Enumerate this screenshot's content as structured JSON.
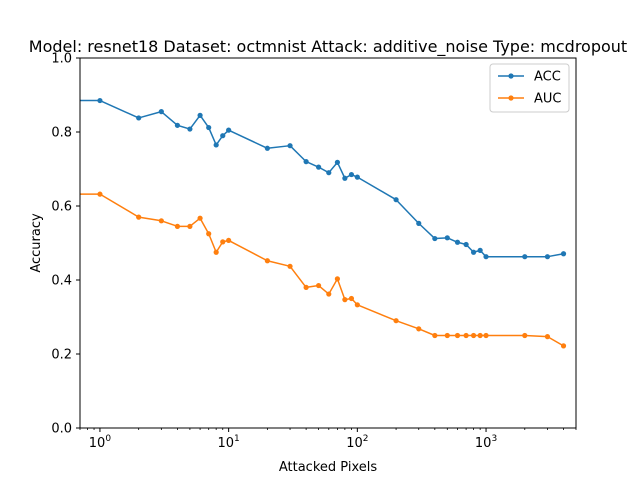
{
  "chart_data": {
    "type": "line",
    "title": "Model: resnet18 Dataset: octmnist Attack: additive_noise Type: mcdropout",
    "xlabel": "Attacked Pixels",
    "ylabel": "Accuracy",
    "xscale": "log",
    "xlim": [
      0.7,
      5000
    ],
    "ylim": [
      0.0,
      1.0
    ],
    "x_ticks": [
      {
        "value": 1,
        "base": "10",
        "exp": "0"
      },
      {
        "value": 10,
        "base": "10",
        "exp": "1"
      },
      {
        "value": 100,
        "base": "10",
        "exp": "2"
      },
      {
        "value": 1000,
        "base": "10",
        "exp": "3"
      }
    ],
    "y_ticks": [
      "0.0",
      "0.2",
      "0.4",
      "0.6",
      "0.8",
      "1.0"
    ],
    "y_tick_values": [
      0.0,
      0.2,
      0.4,
      0.6,
      0.8,
      1.0
    ],
    "grid": false,
    "legend_position": "top-right",
    "series": [
      {
        "name": "ACC",
        "color": "#1f77b4",
        "points": [
          [
            0.1,
            0.885
          ],
          [
            1,
            0.885
          ],
          [
            2,
            0.838
          ],
          [
            3,
            0.855
          ],
          [
            4,
            0.818
          ],
          [
            5,
            0.808
          ],
          [
            6,
            0.845
          ],
          [
            7,
            0.812
          ],
          [
            8,
            0.765
          ],
          [
            9,
            0.79
          ],
          [
            10,
            0.805
          ],
          [
            20,
            0.756
          ],
          [
            30,
            0.763
          ],
          [
            40,
            0.72
          ],
          [
            50,
            0.705
          ],
          [
            60,
            0.69
          ],
          [
            70,
            0.718
          ],
          [
            80,
            0.675
          ],
          [
            90,
            0.685
          ],
          [
            100,
            0.678
          ],
          [
            200,
            0.617
          ],
          [
            300,
            0.553
          ],
          [
            400,
            0.512
          ],
          [
            500,
            0.514
          ],
          [
            600,
            0.502
          ],
          [
            700,
            0.496
          ],
          [
            800,
            0.475
          ],
          [
            900,
            0.48
          ],
          [
            1000,
            0.463
          ],
          [
            2000,
            0.463
          ],
          [
            3000,
            0.463
          ],
          [
            4000,
            0.471
          ]
        ]
      },
      {
        "name": "AUC",
        "color": "#ff7f0e",
        "points": [
          [
            0.1,
            0.632
          ],
          [
            1,
            0.632
          ],
          [
            2,
            0.57
          ],
          [
            3,
            0.56
          ],
          [
            4,
            0.545
          ],
          [
            5,
            0.545
          ],
          [
            6,
            0.567
          ],
          [
            7,
            0.525
          ],
          [
            8,
            0.475
          ],
          [
            9,
            0.503
          ],
          [
            10,
            0.507
          ],
          [
            20,
            0.452
          ],
          [
            30,
            0.437
          ],
          [
            40,
            0.38
          ],
          [
            50,
            0.385
          ],
          [
            60,
            0.362
          ],
          [
            70,
            0.403
          ],
          [
            80,
            0.347
          ],
          [
            90,
            0.35
          ],
          [
            100,
            0.333
          ],
          [
            200,
            0.29
          ],
          [
            300,
            0.268
          ],
          [
            400,
            0.25
          ],
          [
            500,
            0.25
          ],
          [
            600,
            0.25
          ],
          [
            700,
            0.25
          ],
          [
            800,
            0.25
          ],
          [
            900,
            0.25
          ],
          [
            1000,
            0.25
          ],
          [
            2000,
            0.25
          ],
          [
            3000,
            0.247
          ],
          [
            4000,
            0.222
          ]
        ]
      }
    ]
  }
}
